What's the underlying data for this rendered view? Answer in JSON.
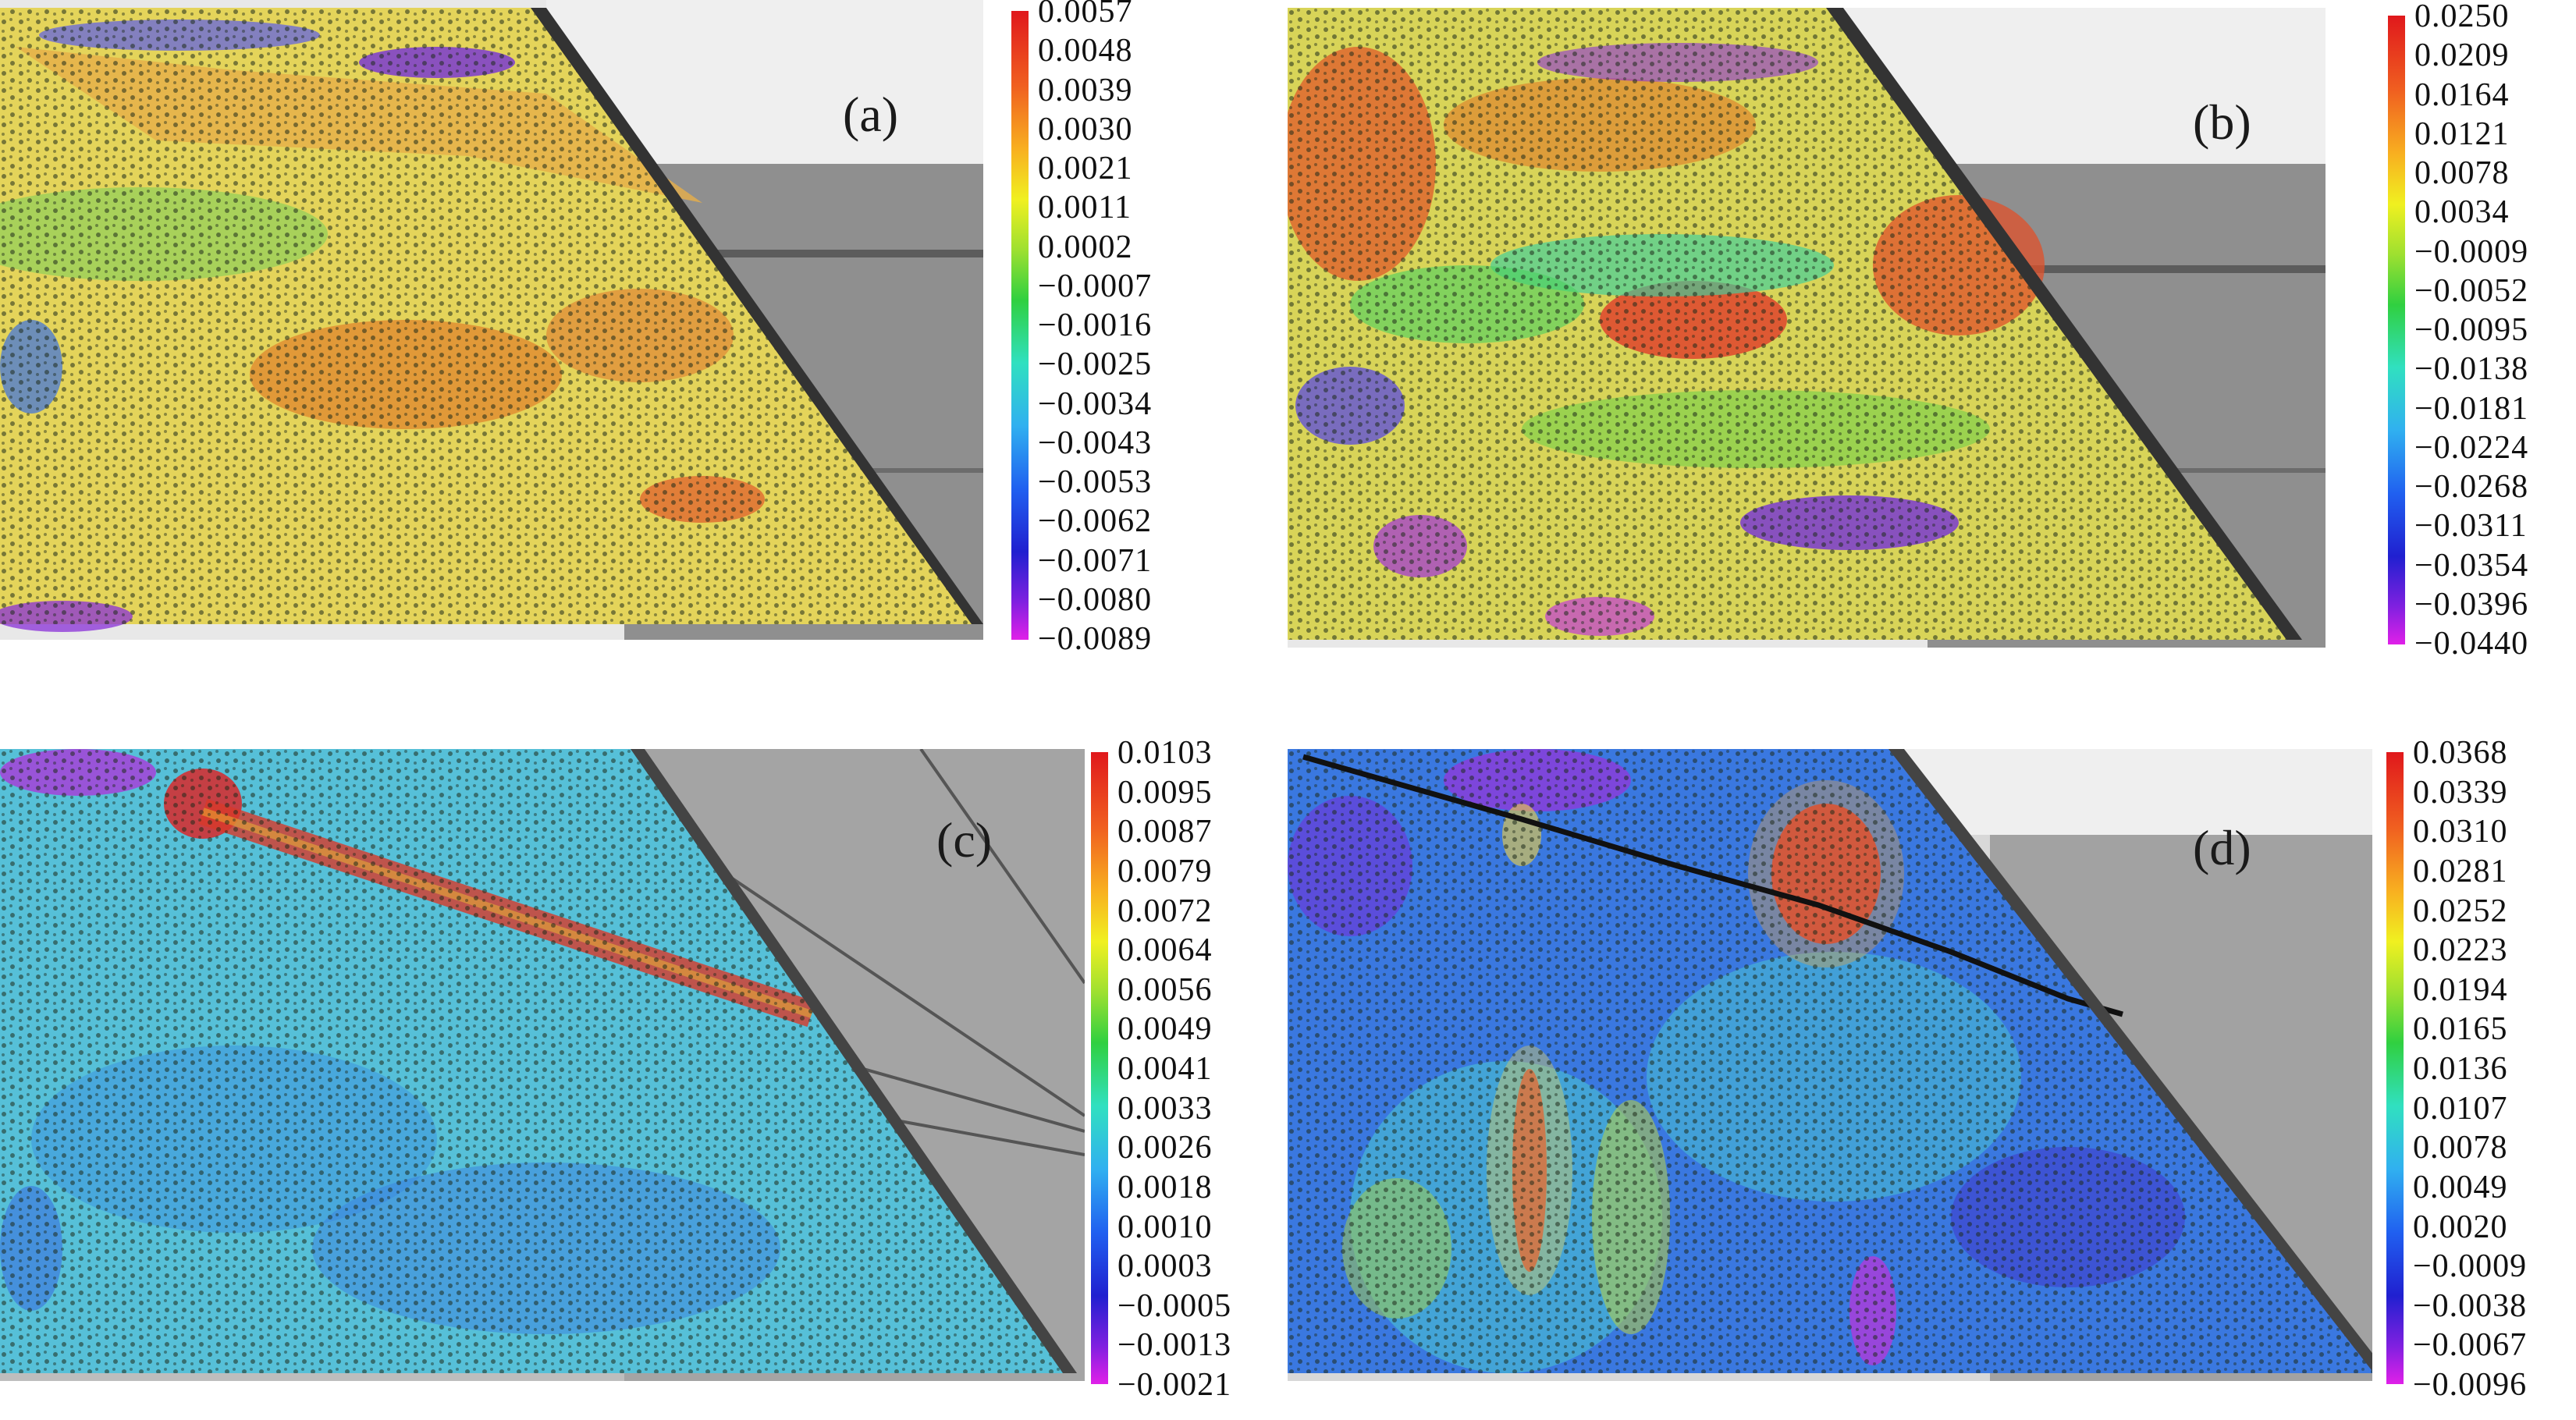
{
  "panels": [
    {
      "label": "(a)",
      "colorbar_ticks": [
        "0.0057",
        "0.0048",
        "0.0039",
        "0.0030",
        "0.0021",
        "0.0011",
        "0.0002",
        "−0.0007",
        "−0.0016",
        "−0.0025",
        "−0.0034",
        "−0.0043",
        "−0.0053",
        "−0.0062",
        "−0.0071",
        "−0.0080",
        "−0.0089"
      ]
    },
    {
      "label": "(b)",
      "colorbar_ticks": [
        "0.0250",
        "0.0209",
        "0.0164",
        "0.0121",
        "0.0078",
        "0.0034",
        "−0.0009",
        "−0.0052",
        "−0.0095",
        "−0.0138",
        "−0.0181",
        "−0.0224",
        "−0.0268",
        "−0.0311",
        "−0.0354",
        "−0.0396",
        "−0.0440"
      ]
    },
    {
      "label": "(c)",
      "colorbar_ticks": [
        "0.0103",
        "0.0095",
        "0.0087",
        "0.0079",
        "0.0072",
        "0.0064",
        "0.0056",
        "0.0049",
        "0.0041",
        "0.0033",
        "0.0026",
        "0.0018",
        "0.0010",
        "0.0003",
        "−0.0005",
        "−0.0013",
        "−0.0021"
      ]
    },
    {
      "label": "(d)",
      "colorbar_ticks": [
        "0.0368",
        "0.0339",
        "0.0310",
        "0.0281",
        "0.0252",
        "0.0223",
        "0.0194",
        "0.0165",
        "0.0136",
        "0.0107",
        "0.0078",
        "0.0049",
        "0.0020",
        "−0.0009",
        "−0.0038",
        "−0.0067",
        "−0.0096"
      ]
    }
  ],
  "colors": {
    "jet_top": "#e0181c",
    "jet_bottom": "#e020e8",
    "background_gray": "#9a9a9a",
    "light_gray": "#d8d8d8"
  }
}
